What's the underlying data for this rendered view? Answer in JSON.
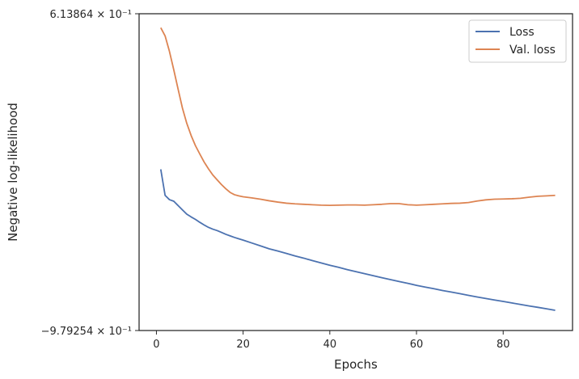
{
  "chart_data": {
    "type": "line",
    "xlabel": "Epochs",
    "ylabel": "Negative log-likelihood",
    "xlim": [
      -4,
      96
    ],
    "ylim": [
      -0.979254,
      0.613864
    ],
    "y_scale": "symlog",
    "x_ticks": [
      {
        "value": 0,
        "label": "0"
      },
      {
        "value": 20,
        "label": "20"
      },
      {
        "value": 40,
        "label": "40"
      },
      {
        "value": 60,
        "label": "60"
      },
      {
        "value": 80,
        "label": "80"
      }
    ],
    "y_ticks": [
      {
        "value": 0.613864,
        "label": "6.13864 × 10⁻¹"
      },
      {
        "value": -0.979254,
        "label": "−9.79254 × 10⁻¹"
      }
    ],
    "grid": false,
    "legend_position": "top-right",
    "series": [
      {
        "name": "Loss",
        "color": "#4c72b0",
        "x": [
          1,
          2,
          3,
          4,
          5,
          6,
          7,
          8,
          9,
          10,
          11,
          12,
          13,
          14,
          15,
          16,
          17,
          18,
          19,
          20,
          22,
          24,
          26,
          28,
          30,
          32,
          34,
          36,
          38,
          40,
          42,
          44,
          46,
          48,
          50,
          52,
          54,
          56,
          58,
          60,
          62,
          64,
          66,
          68,
          70,
          72,
          74,
          76,
          78,
          80,
          82,
          84,
          86,
          88,
          90,
          92
        ],
        "y": [
          -0.096,
          -0.206,
          -0.225,
          -0.232,
          -0.252,
          -0.272,
          -0.292,
          -0.305,
          -0.317,
          -0.331,
          -0.344,
          -0.356,
          -0.365,
          -0.372,
          -0.381,
          -0.391,
          -0.399,
          -0.407,
          -0.414,
          -0.421,
          -0.436,
          -0.451,
          -0.467,
          -0.479,
          -0.492,
          -0.506,
          -0.518,
          -0.532,
          -0.545,
          -0.558,
          -0.57,
          -0.583,
          -0.595,
          -0.607,
          -0.619,
          -0.631,
          -0.642,
          -0.654,
          -0.665,
          -0.677,
          -0.688,
          -0.698,
          -0.709,
          -0.719,
          -0.729,
          -0.74,
          -0.75,
          -0.76,
          -0.77,
          -0.779,
          -0.789,
          -0.799,
          -0.809,
          -0.818,
          -0.828,
          -0.838
        ]
      },
      {
        "name": "Val. loss",
        "color": "#dd8452",
        "x": [
          1,
          2,
          3,
          4,
          5,
          6,
          7,
          8,
          9,
          10,
          11,
          12,
          13,
          14,
          15,
          16,
          17,
          18,
          19,
          20,
          22,
          24,
          26,
          28,
          30,
          32,
          34,
          36,
          38,
          40,
          42,
          44,
          46,
          48,
          50,
          52,
          54,
          56,
          58,
          60,
          62,
          64,
          66,
          68,
          70,
          72,
          74,
          76,
          78,
          80,
          82,
          84,
          86,
          88,
          90,
          92
        ],
        "y": [
          0.533,
          0.488,
          0.406,
          0.314,
          0.224,
          0.142,
          0.08,
          0.033,
          -0.005,
          -0.036,
          -0.067,
          -0.094,
          -0.119,
          -0.139,
          -0.159,
          -0.177,
          -0.193,
          -0.203,
          -0.208,
          -0.212,
          -0.217,
          -0.223,
          -0.23,
          -0.236,
          -0.241,
          -0.244,
          -0.246,
          -0.248,
          -0.25,
          -0.251,
          -0.25,
          -0.249,
          -0.249,
          -0.25,
          -0.248,
          -0.246,
          -0.243,
          -0.243,
          -0.248,
          -0.25,
          -0.248,
          -0.246,
          -0.244,
          -0.242,
          -0.241,
          -0.238,
          -0.231,
          -0.226,
          -0.223,
          -0.222,
          -0.221,
          -0.219,
          -0.214,
          -0.21,
          -0.208,
          -0.206
        ]
      }
    ]
  }
}
